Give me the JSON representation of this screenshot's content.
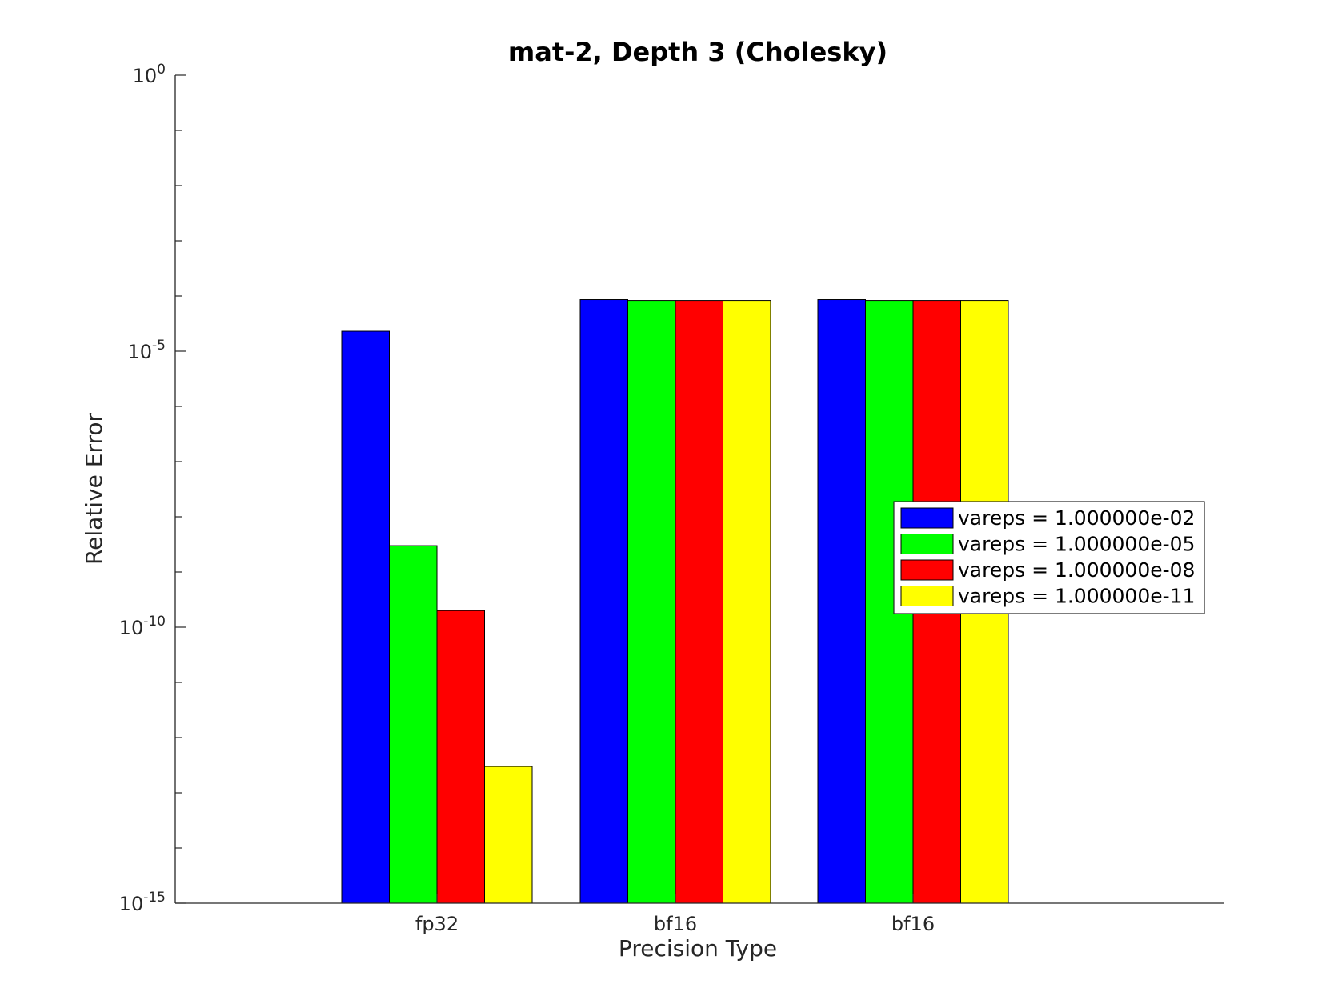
{
  "chart_data": {
    "type": "bar",
    "title": "mat-2, Depth 3 (Cholesky)",
    "xlabel": "Precision Type",
    "ylabel": "Relative Error",
    "yscale": "log",
    "ylim": [
      1e-15,
      1
    ],
    "ytick_labels": [
      {
        "value": 1,
        "base": "10",
        "exp": "0"
      },
      {
        "value": 1e-05,
        "base": "10",
        "exp": "-5"
      },
      {
        "value": 1e-10,
        "base": "10",
        "exp": "-10"
      },
      {
        "value": 1e-15,
        "base": "10",
        "exp": "-15"
      }
    ],
    "categories": [
      "fp32",
      "bf16",
      "bf16"
    ],
    "series": [
      {
        "name": "vareps = 1.000000e-02",
        "color": "#0000ff",
        "values": [
          2.3e-05,
          8.6e-05,
          8.6e-05
        ]
      },
      {
        "name": "vareps = 1.000000e-05",
        "color": "#00ff00",
        "values": [
          3e-09,
          8.3e-05,
          8.3e-05
        ]
      },
      {
        "name": "vareps = 1.000000e-08",
        "color": "#ff0000",
        "values": [
          2e-10,
          8.3e-05,
          8.3e-05
        ]
      },
      {
        "name": "vareps = 1.000000e-11",
        "color": "#ffff00",
        "values": [
          3e-13,
          8.3e-05,
          8.3e-05
        ]
      }
    ],
    "legend_position": "right",
    "grid": false
  }
}
